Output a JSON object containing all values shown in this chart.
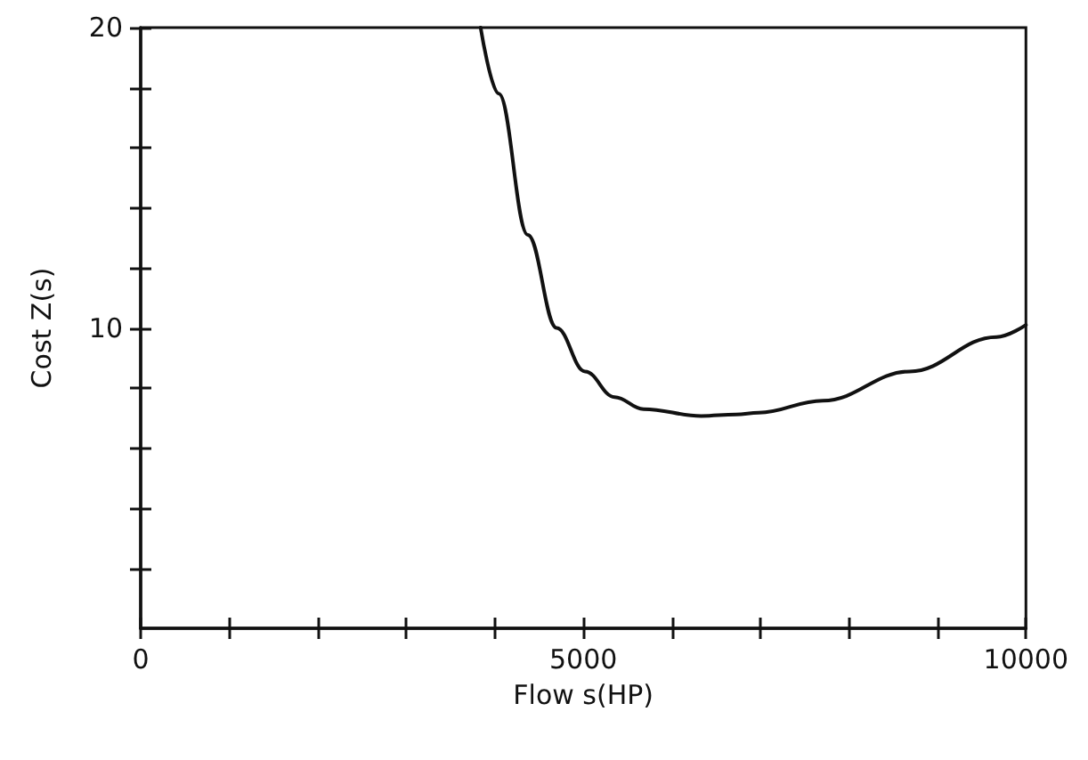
{
  "chart_data": {
    "type": "line",
    "xlabel": "Flow s(HP)",
    "ylabel": "Cost Z(s)",
    "x": [
      3840,
      4045,
      4373,
      4699,
      5020,
      5353,
      5680,
      6333,
      6725,
      6980,
      7706,
      8686,
      9667,
      10000
    ],
    "series": [
      {
        "color": "#111111",
        "values": [
          20,
          17.8,
          13.1,
          10.0,
          8.55,
          7.7,
          7.3,
          7.07,
          7.12,
          7.18,
          7.58,
          8.55,
          9.7,
          10.1
        ]
      }
    ],
    "xlim": [
      0,
      10000
    ],
    "ylim": [
      0,
      20
    ],
    "xticks": [
      0,
      {
        "value": 1000,
        "label": null
      },
      {
        "value": 2000,
        "label": null
      },
      {
        "value": 3000,
        "label": null
      },
      {
        "value": 4000,
        "label": null
      },
      5000,
      {
        "value": 6000,
        "label": null
      },
      {
        "value": 7000,
        "label": null
      },
      {
        "value": 8000,
        "label": null
      },
      {
        "value": 9000,
        "label": null
      },
      10000
    ],
    "yticks": [
      {
        "value": 2,
        "label": null
      },
      {
        "value": 4,
        "label": null
      },
      {
        "value": 6,
        "label": null
      },
      {
        "value": 8,
        "label": null
      },
      10,
      {
        "value": 12,
        "label": null
      },
      {
        "value": 14,
        "label": null
      },
      {
        "value": 16,
        "label": null
      },
      {
        "value": 18,
        "label": null
      },
      20
    ],
    "grid": false,
    "marker": "none",
    "line_style": "solid"
  }
}
